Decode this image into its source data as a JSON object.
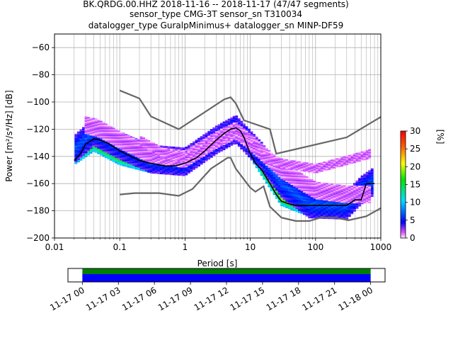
{
  "title": {
    "line1": "BK.QRDG.00.HHZ   2018-11-16 -- 2018-11-17  (47/47 segments)",
    "line2": "sensor_type CMG-3T sensor_sn T310034",
    "line3": "datalogger_type GuralpMinimus+ datalogger_sn MINP-DF59"
  },
  "colors": {
    "noise_model": "#666666",
    "mode_curve": "#000000",
    "grid": "#b0b0b0",
    "coverage_green": "#008000",
    "coverage_blue": "#0000ff"
  },
  "chart_data": [
    {
      "type": "heatmap",
      "subtype": "probabilistic power spectral density",
      "xlabel": "Period [s]",
      "ylabel": "Power [m²/s⁴/Hz] [dB]",
      "x_scale": "log",
      "xlim": [
        0.01,
        1000
      ],
      "ylim": [
        -200,
        -50
      ],
      "x_ticks": [
        "0.01",
        "0.1",
        "1",
        "10",
        "100",
        "1000"
      ],
      "x_tick_values": [
        0.01,
        0.1,
        1,
        10,
        100,
        1000
      ],
      "y_ticks": [
        "−200",
        "−180",
        "−160",
        "−140",
        "−120",
        "−100",
        "−80",
        "−60"
      ],
      "y_tick_values": [
        -200,
        -180,
        -160,
        -140,
        -120,
        -100,
        -80,
        -60
      ],
      "grid": true,
      "colorbar": {
        "label": "[%]",
        "range": [
          0,
          30
        ],
        "ticks": [
          "0",
          "5",
          "10",
          "15",
          "20",
          "25",
          "30"
        ],
        "colormap": "pqlx"
      },
      "series": [
        {
          "role": "mode",
          "x": [
            0.02,
            0.025,
            0.03,
            0.04,
            0.05,
            0.07,
            0.1,
            0.15,
            0.2,
            0.3,
            0.5,
            0.7,
            1,
            1.5,
            2,
            3,
            4,
            5,
            6,
            7,
            8,
            10,
            12,
            15,
            20,
            25,
            30,
            40,
            50,
            70,
            100,
            150,
            200,
            300,
            400,
            500,
            600,
            700,
            800
          ],
          "y": [
            -143,
            -138,
            -131,
            -127,
            -128,
            -131,
            -136,
            -140,
            -143,
            -145,
            -147,
            -147,
            -145,
            -141,
            -136,
            -128,
            -123,
            -120,
            -119,
            -121,
            -126,
            -138,
            -145,
            -150,
            -160,
            -168,
            -173,
            -175,
            -176,
            -176,
            -176,
            -176,
            -176,
            -176,
            -172,
            -172,
            -160,
            -160,
            -160
          ]
        },
        {
          "role": "NHNM",
          "x": [
            0.1,
            0.2,
            0.3,
            0.8,
            4,
            5,
            6,
            8,
            20,
            25,
            300,
            1000
          ],
          "y": [
            -91.5,
            -97.4,
            -110.5,
            -120,
            -98,
            -96.5,
            -101,
            -113.5,
            -120,
            -138,
            -126,
            -111
          ]
        },
        {
          "role": "NLNM",
          "x": [
            0.1,
            0.17,
            0.4,
            0.8,
            1.3,
            2.5,
            4.5,
            5,
            6,
            8,
            10,
            12,
            16,
            20,
            30,
            50,
            80,
            120,
            200,
            320,
            600,
            1000
          ],
          "y": [
            -168,
            -167,
            -167,
            -169,
            -164,
            -149,
            -141,
            -141,
            -149,
            -157,
            -163,
            -166,
            -162,
            -177,
            -185,
            -187.5,
            -187.5,
            -185,
            -185,
            -187,
            -184,
            -178
          ]
        }
      ],
      "heatmap_bands": [
        {
          "x": [
            0.02,
            0.04,
            0.1,
            0.3,
            1,
            3,
            6,
            15,
            30,
            80,
            300,
            500,
            800
          ],
          "y": [
            -140,
            -130,
            -140,
            -146,
            -146,
            -129,
            -119,
            -148,
            -170,
            -178,
            -177,
            -168,
            -160
          ],
          "spread": 6,
          "level": 20
        },
        {
          "x": [
            0.02,
            0.04,
            0.1,
            0.3,
            1,
            3,
            6,
            15,
            30,
            80,
            300,
            500,
            800
          ],
          "y": [
            -135,
            -122,
            -132,
            -142,
            -144,
            -128,
            -120,
            -140,
            -160,
            -175,
            -176,
            -165,
            -158
          ],
          "spread": 10,
          "level": 6
        },
        {
          "x": [
            0.03,
            0.05,
            0.1,
            0.3,
            1,
            3,
            6,
            12,
            30,
            100,
            300,
            700
          ],
          "y": [
            -117,
            -120,
            -128,
            -139,
            -142,
            -128,
            -121,
            -133,
            -150,
            -165,
            -168,
            -168
          ],
          "spread": 6,
          "level": 1
        },
        {
          "x": [
            0.2,
            0.5,
            1,
            3,
            6,
            15,
            30,
            100,
            300,
            700
          ],
          "y": [
            -128,
            -138,
            -141,
            -130,
            -121,
            -140,
            -145,
            -149,
            -143,
            -138
          ],
          "spread": 3,
          "level": 1
        }
      ]
    },
    {
      "type": "timeline",
      "subtype": "data coverage",
      "x_ticks": [
        "11-17 00",
        "11-17 03",
        "11-17 06",
        "11-17 09",
        "11-17 12",
        "11-17 15",
        "11-17 18",
        "11-17 21",
        "11-18 00"
      ],
      "x_tick_hours": [
        0,
        3,
        6,
        9,
        12,
        15,
        18,
        21,
        24
      ],
      "xlim_hours": [
        -1.2,
        25.2
      ],
      "coverage_hours": [
        0,
        24
      ]
    }
  ]
}
